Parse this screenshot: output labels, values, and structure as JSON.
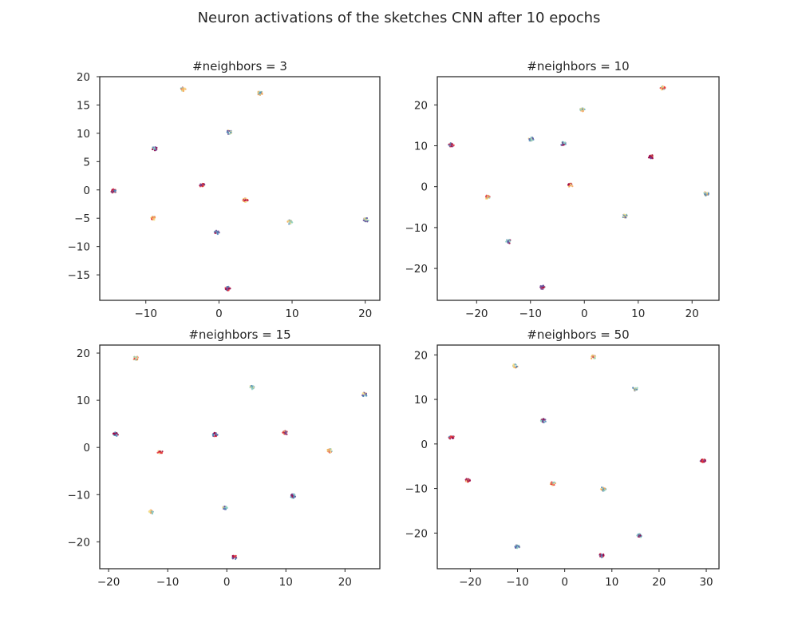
{
  "title": "Neuron activations of the sketches CNN after 10 epochs",
  "cluster_colors": [
    "#e8343c",
    "#f4a259",
    "#f7e08a",
    "#8fd1c1",
    "#4f86b8",
    "#6c4a9a",
    "#9e0142"
  ],
  "chart_data": [
    {
      "type": "scatter",
      "title": "#neighbors = 3",
      "xlim": [
        -16.3,
        22.0
      ],
      "ylim": [
        -19.5,
        20.0
      ],
      "xticks": [
        -10,
        0,
        10,
        20
      ],
      "yticks": [
        -15,
        -10,
        -5,
        0,
        5,
        10,
        15,
        20
      ],
      "clusters": [
        {
          "x": -4.9,
          "y": 17.8
        },
        {
          "x": 5.6,
          "y": 17.1
        },
        {
          "x": 1.4,
          "y": 10.2
        },
        {
          "x": -8.8,
          "y": 7.3
        },
        {
          "x": -14.4,
          "y": -0.2
        },
        {
          "x": -2.3,
          "y": 0.8
        },
        {
          "x": 3.6,
          "y": -1.8
        },
        {
          "x": -9.0,
          "y": -5.0
        },
        {
          "x": 9.7,
          "y": -5.7
        },
        {
          "x": 20.1,
          "y": -5.3
        },
        {
          "x": -0.3,
          "y": -7.5
        },
        {
          "x": 1.2,
          "y": -17.4
        }
      ]
    },
    {
      "type": "scatter",
      "title": "#neighbors = 10",
      "xlim": [
        -27.3,
        25.0
      ],
      "ylim": [
        -27.8,
        26.9
      ],
      "xticks": [
        -20,
        -10,
        0,
        10,
        20
      ],
      "yticks": [
        -20,
        -10,
        0,
        10,
        20
      ],
      "clusters": [
        {
          "x": 14.6,
          "y": 24.1
        },
        {
          "x": -0.4,
          "y": 18.8
        },
        {
          "x": -9.9,
          "y": 11.6
        },
        {
          "x": -3.9,
          "y": 10.5
        },
        {
          "x": -24.7,
          "y": 10.2
        },
        {
          "x": 12.4,
          "y": 7.3
        },
        {
          "x": -2.6,
          "y": 0.3
        },
        {
          "x": -18.0,
          "y": -2.6
        },
        {
          "x": 22.6,
          "y": -1.7
        },
        {
          "x": 7.5,
          "y": -7.2
        },
        {
          "x": -14.1,
          "y": -13.4
        },
        {
          "x": -7.8,
          "y": -24.6
        }
      ]
    },
    {
      "type": "scatter",
      "title": "#neighbors = 15",
      "xlim": [
        -21.5,
        25.9
      ],
      "ylim": [
        -25.7,
        21.7
      ],
      "xticks": [
        -20,
        -10,
        0,
        10,
        20
      ],
      "yticks": [
        -20,
        -10,
        0,
        10,
        20
      ],
      "clusters": [
        {
          "x": -15.4,
          "y": 18.9
        },
        {
          "x": 4.2,
          "y": 12.7
        },
        {
          "x": 23.3,
          "y": 11.2
        },
        {
          "x": -18.8,
          "y": 2.8
        },
        {
          "x": -2.0,
          "y": 2.7
        },
        {
          "x": 9.9,
          "y": 3.1
        },
        {
          "x": -11.3,
          "y": -1.0
        },
        {
          "x": 17.4,
          "y": -0.7
        },
        {
          "x": -12.8,
          "y": -13.7
        },
        {
          "x": -0.3,
          "y": -12.8
        },
        {
          "x": 11.2,
          "y": -10.3
        },
        {
          "x": 1.3,
          "y": -23.3
        }
      ]
    },
    {
      "type": "scatter",
      "title": "#neighbors = 50",
      "xlim": [
        -27.0,
        32.7
      ],
      "ylim": [
        -28.0,
        22.2
      ],
      "xticks": [
        -20,
        -10,
        0,
        10,
        20,
        30
      ],
      "yticks": [
        -20,
        -10,
        0,
        10,
        20
      ],
      "clusters": [
        {
          "x": 6.0,
          "y": 19.5
        },
        {
          "x": -10.5,
          "y": 17.5
        },
        {
          "x": 14.9,
          "y": 12.4
        },
        {
          "x": -4.5,
          "y": 5.2
        },
        {
          "x": -24.0,
          "y": 1.5
        },
        {
          "x": 29.3,
          "y": -3.8
        },
        {
          "x": -20.5,
          "y": -8.1
        },
        {
          "x": -2.5,
          "y": -8.9
        },
        {
          "x": 8.2,
          "y": -10.1
        },
        {
          "x": -10.0,
          "y": -23.1
        },
        {
          "x": 15.8,
          "y": -20.6
        },
        {
          "x": 7.9,
          "y": -25.0
        }
      ]
    }
  ]
}
